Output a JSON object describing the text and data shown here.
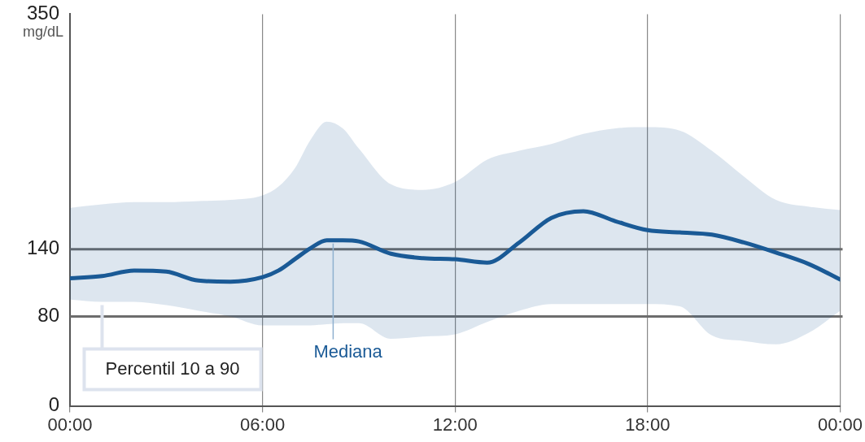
{
  "chart_data": {
    "type": "line",
    "ylabel": "mg/dL",
    "xlim": [
      0,
      24
    ],
    "xticks": [
      {
        "value": 0,
        "label": "00:00"
      },
      {
        "value": 6,
        "label": "06:00"
      },
      {
        "value": 12,
        "label": "12:00"
      },
      {
        "value": 18,
        "label": "18:00"
      },
      {
        "value": 24,
        "label": "00:00"
      }
    ],
    "ylim": [
      0,
      350
    ],
    "yticks": [
      0,
      80,
      140,
      350
    ],
    "grid": "x",
    "legend": false,
    "marker": "none",
    "line_style": "solid",
    "series": [
      {
        "color": "#1a5a96",
        "x": [
          0,
          1,
          2,
          3,
          4,
          5,
          6,
          6.5,
          7,
          7.5,
          8,
          8.5,
          9,
          10,
          11,
          12,
          13,
          14,
          15,
          16,
          17,
          18,
          19,
          20,
          21,
          22,
          23,
          24
        ],
        "values": [
          114,
          116,
          121,
          120,
          112,
          111,
          115,
          121,
          131,
          141,
          148,
          148,
          147,
          136,
          132,
          131,
          128,
          146,
          168,
          174,
          165,
          157,
          155,
          153,
          146,
          137,
          127,
          113
        ],
        "upper": [
          177,
          180,
          182,
          182,
          183,
          184,
          188,
          196,
          212,
          238,
          254,
          248,
          230,
          198,
          193,
          200,
          220,
          228,
          234,
          243,
          248,
          249,
          246,
          228,
          205,
          184,
          178,
          175
        ],
        "lower": [
          95,
          93,
          93,
          90,
          85,
          80,
          72,
          72,
          72,
          72,
          73,
          74,
          74,
          60,
          62,
          64,
          75,
          85,
          91,
          91,
          91,
          91,
          89,
          63,
          58,
          55,
          65,
          85
        ]
      }
    ],
    "ref_lines": [
      {
        "axis": "y",
        "value": 140,
        "color": "#6d6d6d"
      },
      {
        "axis": "y",
        "value": 80,
        "color": "#6d6d6d"
      }
    ],
    "annotations": [
      {
        "text": "Percentil 10 a 90",
        "x": 1,
        "y": 93
      },
      {
        "text": "Mediana",
        "x": 8.2,
        "y": 148
      }
    ]
  }
}
